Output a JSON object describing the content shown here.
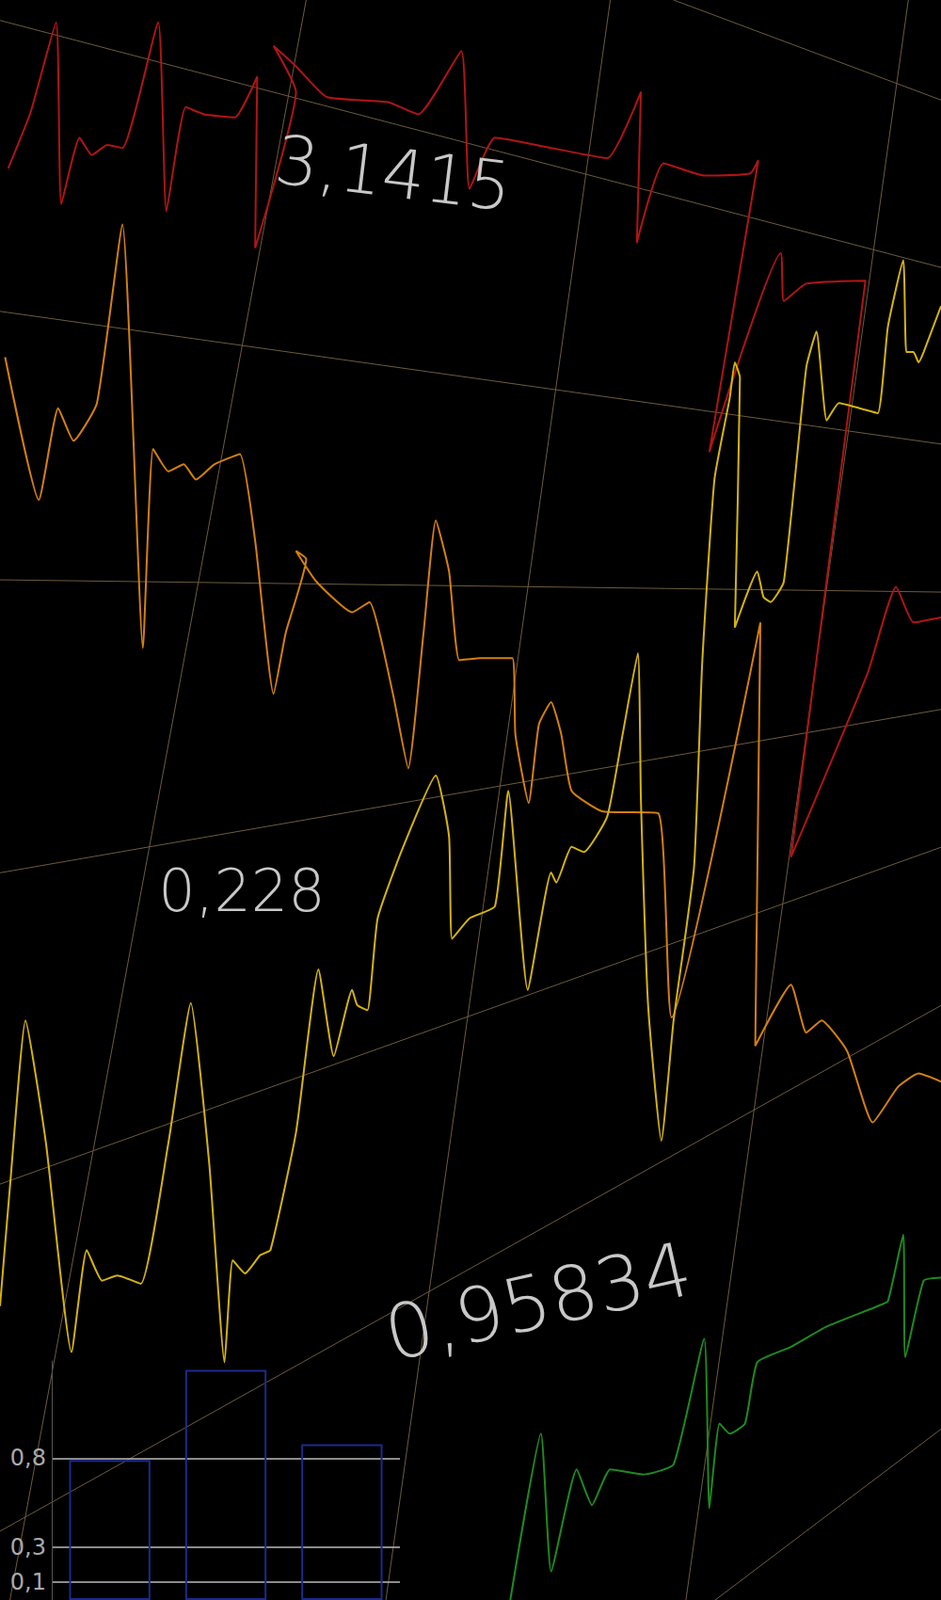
{
  "chart_data": [
    {
      "type": "line",
      "xlim": [
        0,
        922
      ],
      "ylim": [
        0,
        1568
      ],
      "tick_labels": false,
      "grid": false,
      "annotations": [
        "3,1415",
        "0,228",
        "0,95834"
      ],
      "series": [
        {
          "color": "#b01515",
          "values": [
            [
              8,
              1403
            ],
            [
              30,
              1458
            ],
            [
              55,
              1546
            ],
            [
              60,
              1368
            ],
            [
              78,
              1433
            ],
            [
              90,
              1416
            ],
            [
              105,
              1426
            ],
            [
              120,
              1423
            ],
            [
              155,
              1546
            ],
            [
              163,
              1361
            ],
            [
              182,
              1463
            ],
            [
              200,
              1456
            ],
            [
              230,
              1453
            ],
            [
              252,
              1493
            ],
            [
              250,
              1325
            ],
            [
              290,
              1478
            ],
            [
              268,
              1523
            ],
            [
              290,
              1503
            ],
            [
              320,
              1473
            ],
            [
              380,
              1468
            ],
            [
              410,
              1456
            ],
            [
              452,
              1518
            ],
            [
              460,
              1383
            ],
            [
              485,
              1433
            ],
            [
              540,
              1423
            ],
            [
              595,
              1413
            ],
            [
              628,
              1478
            ],
            [
              624,
              1330
            ],
            [
              650,
              1408
            ],
            [
              690,
              1396
            ],
            [
              735,
              1398
            ],
            [
              743,
              1411
            ],
            [
              695,
              1125
            ],
            [
              765,
              1320
            ],
            [
              768,
              1273
            ],
            [
              790,
              1290
            ],
            [
              848,
              1293
            ],
            [
              775,
              728
            ],
            [
              850,
              908
            ],
            [
              878,
              993
            ],
            [
              895,
              958
            ],
            [
              922,
              963
            ]
          ]
        },
        {
          "color": "#d4800e",
          "values": [
            [
              5,
              1218
            ],
            [
              38,
              1078
            ],
            [
              57,
              1168
            ],
            [
              72,
              1136
            ],
            [
              95,
              1173
            ],
            [
              120,
              1348
            ],
            [
              140,
              933
            ],
            [
              150,
              1128
            ],
            [
              165,
              1106
            ],
            [
              180,
              1113
            ],
            [
              192,
              1098
            ],
            [
              210,
              1113
            ],
            [
              235,
              1123
            ],
            [
              250,
              1038
            ],
            [
              268,
              888
            ],
            [
              280,
              948
            ],
            [
              300,
              1020
            ],
            [
              290,
              1028
            ],
            [
              310,
              998
            ],
            [
              345,
              968
            ],
            [
              362,
              978
            ],
            [
              385,
              888
            ],
            [
              400,
              815
            ],
            [
              415,
              948
            ],
            [
              427,
              1058
            ],
            [
              440,
              1008
            ],
            [
              450,
              921
            ],
            [
              470,
              923
            ],
            [
              502,
              923
            ],
            [
              505,
              848
            ],
            [
              518,
              781
            ],
            [
              528,
              858
            ],
            [
              540,
              880
            ],
            [
              550,
              848
            ],
            [
              560,
              793
            ],
            [
              590,
              773
            ],
            [
              645,
              771
            ],
            [
              658,
              571
            ],
            [
              745,
              958
            ],
            [
              740,
              543
            ],
            [
              775,
              603
            ],
            [
              790,
              556
            ],
            [
              805,
              568
            ],
            [
              830,
              538
            ],
            [
              855,
              468
            ],
            [
              880,
              503
            ],
            [
              900,
              516
            ],
            [
              922,
              508
            ]
          ]
        },
        {
          "color": "#d4b40e",
          "values": [
            [
              0,
              288
            ],
            [
              10,
              408
            ],
            [
              25,
              568
            ],
            [
              45,
              448
            ],
            [
              70,
              243
            ],
            [
              85,
              343
            ],
            [
              100,
              313
            ],
            [
              115,
              318
            ],
            [
              138,
              310
            ],
            [
              165,
              448
            ],
            [
              187,
              585
            ],
            [
              205,
              428
            ],
            [
              220,
              233
            ],
            [
              228,
              333
            ],
            [
              240,
              320
            ],
            [
              255,
              338
            ],
            [
              265,
              343
            ],
            [
              290,
              458
            ],
            [
              312,
              618
            ],
            [
              327,
              533
            ],
            [
              345,
              598
            ],
            [
              350,
              583
            ],
            [
              360,
              578
            ],
            [
              370,
              668
            ],
            [
              395,
              738
            ],
            [
              427,
              808
            ],
            [
              440,
              748
            ],
            [
              443,
              648
            ],
            [
              460,
              668
            ],
            [
              485,
              680
            ],
            [
              498,
              793
            ],
            [
              517,
              598
            ],
            [
              540,
              713
            ],
            [
              545,
              703
            ],
            [
              560,
              738
            ],
            [
              572,
              733
            ],
            [
              595,
              768
            ],
            [
              610,
              848
            ],
            [
              625,
              928
            ],
            [
              628,
              783
            ],
            [
              635,
              583
            ],
            [
              648,
              450
            ],
            [
              660,
              568
            ],
            [
              680,
              718
            ],
            [
              688,
              918
            ],
            [
              700,
              1098
            ],
            [
              715,
              1178
            ],
            [
              720,
              1213
            ],
            [
              725,
              1198
            ],
            [
              720,
              953
            ],
            [
              742,
              1008
            ],
            [
              748,
              983
            ],
            [
              755,
              978
            ],
            [
              768,
              998
            ],
            [
              790,
              1208
            ],
            [
              800,
              1243
            ],
            [
              810,
              1156
            ],
            [
              822,
              1173
            ],
            [
              842,
              1168
            ],
            [
              860,
              1163
            ],
            [
              870,
              1248
            ],
            [
              885,
              1313
            ],
            [
              888,
              1223
            ],
            [
              895,
              1223
            ],
            [
              900,
              1213
            ],
            [
              905,
              1223
            ],
            [
              922,
              1268
            ]
          ]
        },
        {
          "color": "#1f8a1f",
          "values": [
            [
              500,
              0
            ],
            [
              530,
              163
            ],
            [
              540,
              28
            ],
            [
              565,
              128
            ],
            [
              580,
              93
            ],
            [
              598,
              128
            ],
            [
              630,
              123
            ],
            [
              660,
              133
            ],
            [
              690,
              256
            ],
            [
              695,
              90
            ],
            [
              705,
              173
            ],
            [
              715,
              163
            ],
            [
              730,
              173
            ],
            [
              742,
              233
            ],
            [
              775,
              248
            ],
            [
              810,
              268
            ],
            [
              860,
              288
            ],
            [
              870,
              293
            ],
            [
              885,
              358
            ],
            [
              887,
              238
            ],
            [
              905,
              313
            ],
            [
              922,
              316
            ]
          ]
        }
      ]
    },
    {
      "type": "bar",
      "categories": [
        null,
        null,
        null
      ],
      "values": [
        0.79,
        1.3,
        0.88
      ],
      "color": "#1c2a8c",
      "ylim": [
        0,
        1.35
      ],
      "yticks": [
        {
          "value": 0.1,
          "label": "0,1"
        },
        {
          "value": 0.3,
          "label": "0,3"
        },
        {
          "value": 0.8,
          "label": "0,8"
        }
      ],
      "grid": true,
      "tick_labels": "y"
    }
  ]
}
